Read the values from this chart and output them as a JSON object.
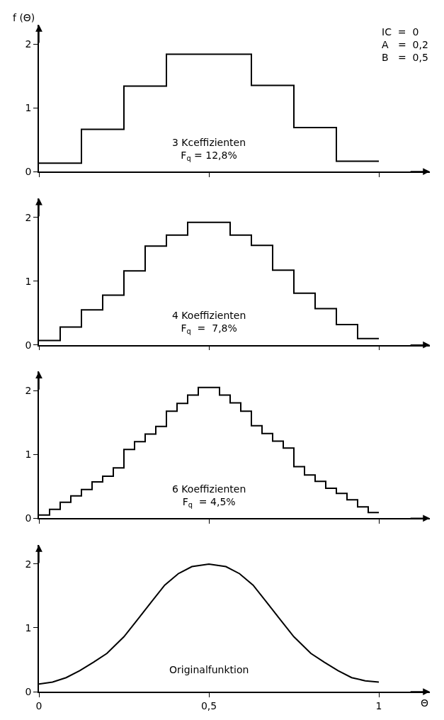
{
  "chart_data": [
    {
      "type": "step",
      "ylabel": "f (Θ)",
      "annotations": [
        "IC  =  0\nA   =  0,2\nB   =  0,5",
        "3 Kceffizienten\nF$_{q}$ = 12,8%"
      ],
      "x": [
        0,
        0.125,
        0.25,
        0.375,
        0.5,
        0.625,
        0.75,
        0.875,
        1
      ],
      "series": [
        {
          "color": "#000000",
          "values": [
            0.13,
            0.66,
            1.34,
            1.84,
            1.84,
            1.35,
            0.69,
            0.16,
            0.16
          ]
        }
      ],
      "xlim": [
        0,
        1.15
      ],
      "xticks": [
        {
          "value": 0,
          "label": null
        },
        {
          "value": 0.5,
          "label": null
        },
        {
          "value": 1,
          "label": null
        }
      ],
      "ylim": [
        0,
        2.3
      ],
      "yticks": [
        0,
        1,
        2
      ],
      "tick_labels": "y"
    },
    {
      "type": "step",
      "annotations": [
        "4 Koeffizienten\nF$_{q}$  =  7,8%"
      ],
      "x": [
        0,
        0.0625,
        0.125,
        0.1875,
        0.25,
        0.3125,
        0.375,
        0.4375,
        0.5,
        0.5625,
        0.625,
        0.6875,
        0.75,
        0.8125,
        0.875,
        0.9375,
        1
      ],
      "series": [
        {
          "color": "#000000",
          "values": [
            0.07,
            0.28,
            0.55,
            0.78,
            1.16,
            1.55,
            1.72,
            1.92,
            1.92,
            1.72,
            1.56,
            1.17,
            0.81,
            0.57,
            0.32,
            0.1,
            0.1
          ]
        }
      ],
      "xlim": [
        0,
        1.15
      ],
      "xticks": [
        {
          "value": 0,
          "label": null
        },
        {
          "value": 0.5,
          "label": null
        },
        {
          "value": 1,
          "label": null
        }
      ],
      "ylim": [
        0,
        2.3
      ],
      "yticks": [
        0,
        1,
        2
      ],
      "tick_labels": "y"
    },
    {
      "type": "step",
      "annotations": [
        "6 Koeffizienten\nF$_{q}$  = 4,5%"
      ],
      "x": [
        0,
        0.03125,
        0.0625,
        0.09375,
        0.125,
        0.15625,
        0.1875,
        0.21875,
        0.25,
        0.28125,
        0.3125,
        0.34375,
        0.375,
        0.40625,
        0.4375,
        0.46875,
        0.5,
        0.53125,
        0.5625,
        0.59375,
        0.625,
        0.65625,
        0.6875,
        0.71875,
        0.75,
        0.78125,
        0.8125,
        0.84375,
        0.875,
        0.90625,
        0.9375,
        0.96875,
        1
      ],
      "series": [
        {
          "color": "#000000",
          "values": [
            0.05,
            0.14,
            0.25,
            0.35,
            0.45,
            0.57,
            0.66,
            0.79,
            1.08,
            1.2,
            1.32,
            1.44,
            1.68,
            1.8,
            1.93,
            2.05,
            2.05,
            1.93,
            1.81,
            1.68,
            1.45,
            1.33,
            1.21,
            1.1,
            0.81,
            0.68,
            0.58,
            0.47,
            0.39,
            0.29,
            0.18,
            0.09,
            0.09
          ]
        }
      ],
      "xlim": [
        0,
        1.15
      ],
      "xticks": [
        {
          "value": 0,
          "label": null
        },
        {
          "value": 0.5,
          "label": null
        },
        {
          "value": 1,
          "label": null
        }
      ],
      "ylim": [
        0,
        2.3
      ],
      "yticks": [
        0,
        1,
        2
      ],
      "tick_labels": "y"
    },
    {
      "type": "line",
      "xlabel": "Θ",
      "annotations": [
        "Originalfunktion"
      ],
      "x": [
        0,
        0.04,
        0.08,
        0.12,
        0.16,
        0.2,
        0.25,
        0.29,
        0.33,
        0.37,
        0.41,
        0.45,
        0.5,
        0.55,
        0.59,
        0.63,
        0.67,
        0.71,
        0.75,
        0.8,
        0.84,
        0.88,
        0.92,
        0.96,
        1
      ],
      "series": [
        {
          "color": "#000000",
          "values": [
            0.12,
            0.15,
            0.22,
            0.33,
            0.46,
            0.6,
            0.86,
            1.13,
            1.4,
            1.67,
            1.85,
            1.96,
            2.0,
            1.96,
            1.85,
            1.67,
            1.4,
            1.13,
            0.86,
            0.6,
            0.46,
            0.33,
            0.22,
            0.17,
            0.15
          ]
        }
      ],
      "xlim": [
        0,
        1.15
      ],
      "xticks": [
        0,
        {
          "value": 0.5,
          "label": "0,5"
        },
        1
      ],
      "ylim": [
        0,
        2.3
      ],
      "yticks": [
        0,
        1,
        2
      ]
    }
  ]
}
